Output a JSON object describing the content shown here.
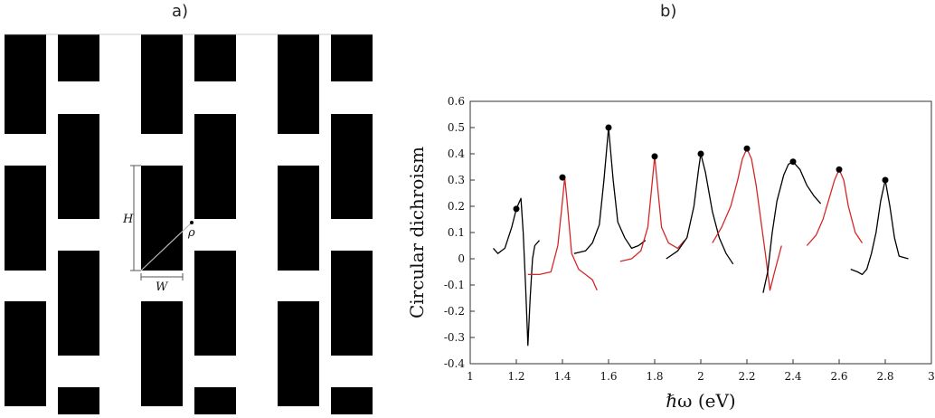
{
  "panels": {
    "a_label": "a)",
    "b_label": "b)"
  },
  "geometry": {
    "height_label": "H",
    "width_label": "W",
    "vector_label": "ρ"
  },
  "colors": {
    "black": "#000000",
    "red": "#d62728",
    "grid_line": "#cccccc"
  },
  "chart_data": {
    "type": "line",
    "title": "",
    "xlabel": "ℏω (eV)",
    "ylabel": "Circular dichroism",
    "xlim": [
      1,
      3
    ],
    "ylim": [
      -0.4,
      0.6
    ],
    "xticks": [
      1,
      1.2,
      1.4,
      1.6,
      1.8,
      2,
      2.2,
      2.4,
      2.6,
      2.8,
      3
    ],
    "yticks": [
      -0.4,
      -0.3,
      -0.2,
      -0.1,
      0,
      0.1,
      0.2,
      0.3,
      0.4,
      0.5,
      0.6
    ],
    "series": [
      {
        "name": "segment-1",
        "color": "black",
        "x": [
          1.1,
          1.12,
          1.15,
          1.18,
          1.2,
          1.21,
          1.22,
          1.23,
          1.24,
          1.25,
          1.26,
          1.27,
          1.28,
          1.3
        ],
        "y": [
          0.04,
          0.02,
          0.04,
          0.12,
          0.19,
          0.21,
          0.23,
          0.1,
          -0.1,
          -0.33,
          -0.15,
          0,
          0.05,
          0.07
        ]
      },
      {
        "name": "segment-2",
        "color": "red",
        "x": [
          1.25,
          1.3,
          1.35,
          1.38,
          1.4,
          1.41,
          1.42,
          1.44,
          1.47,
          1.5,
          1.53,
          1.55
        ],
        "y": [
          -0.06,
          -0.06,
          -0.05,
          0.05,
          0.22,
          0.31,
          0.22,
          0.02,
          -0.04,
          -0.06,
          -0.08,
          -0.12
        ]
      },
      {
        "name": "segment-3",
        "color": "black",
        "x": [
          1.45,
          1.5,
          1.53,
          1.56,
          1.58,
          1.6,
          1.62,
          1.64,
          1.67,
          1.7,
          1.73,
          1.76
        ],
        "y": [
          0.02,
          0.03,
          0.06,
          0.13,
          0.3,
          0.5,
          0.3,
          0.14,
          0.08,
          0.04,
          0.05,
          0.07
        ]
      },
      {
        "name": "segment-4",
        "color": "red",
        "x": [
          1.65,
          1.7,
          1.74,
          1.77,
          1.79,
          1.8,
          1.81,
          1.83,
          1.86,
          1.9,
          1.93
        ],
        "y": [
          -0.01,
          0,
          0.03,
          0.12,
          0.3,
          0.39,
          0.3,
          0.12,
          0.06,
          0.04,
          0.07
        ]
      },
      {
        "name": "segment-5",
        "color": "black",
        "x": [
          1.85,
          1.9,
          1.94,
          1.97,
          1.99,
          2.0,
          2.02,
          2.05,
          2.08,
          2.11,
          2.14
        ],
        "y": [
          0,
          0.03,
          0.08,
          0.2,
          0.34,
          0.4,
          0.33,
          0.18,
          0.08,
          0.02,
          -0.02
        ]
      },
      {
        "name": "segment-6",
        "color": "red",
        "x": [
          2.05,
          2.09,
          2.13,
          2.16,
          2.18,
          2.2,
          2.22,
          2.24,
          2.26,
          2.28,
          2.3,
          2.32,
          2.35
        ],
        "y": [
          0.06,
          0.12,
          0.2,
          0.3,
          0.38,
          0.42,
          0.38,
          0.28,
          0.15,
          0.02,
          -0.12,
          -0.05,
          0.05
        ]
      },
      {
        "name": "segment-7",
        "color": "black",
        "x": [
          2.27,
          2.29,
          2.31,
          2.33,
          2.36,
          2.38,
          2.4,
          2.43,
          2.46,
          2.49,
          2.52
        ],
        "y": [
          -0.13,
          -0.05,
          0.1,
          0.22,
          0.32,
          0.36,
          0.37,
          0.34,
          0.28,
          0.24,
          0.21
        ]
      },
      {
        "name": "segment-8",
        "color": "red",
        "x": [
          2.46,
          2.5,
          2.53,
          2.56,
          2.58,
          2.6,
          2.62,
          2.64,
          2.67,
          2.7
        ],
        "y": [
          0.05,
          0.09,
          0.15,
          0.24,
          0.3,
          0.34,
          0.3,
          0.2,
          0.1,
          0.06
        ]
      },
      {
        "name": "segment-9",
        "color": "black",
        "x": [
          2.65,
          2.68,
          2.7,
          2.72,
          2.74,
          2.76,
          2.78,
          2.8,
          2.82,
          2.84,
          2.86,
          2.9
        ],
        "y": [
          -0.04,
          -0.05,
          -0.06,
          -0.04,
          0.02,
          0.1,
          0.22,
          0.3,
          0.2,
          0.08,
          0.01,
          0
        ]
      }
    ],
    "markers": {
      "x": [
        1.2,
        1.4,
        1.6,
        1.8,
        2.0,
        2.2,
        2.4,
        2.6,
        2.8
      ],
      "y": [
        0.19,
        0.31,
        0.5,
        0.39,
        0.4,
        0.42,
        0.37,
        0.34,
        0.3
      ]
    }
  }
}
